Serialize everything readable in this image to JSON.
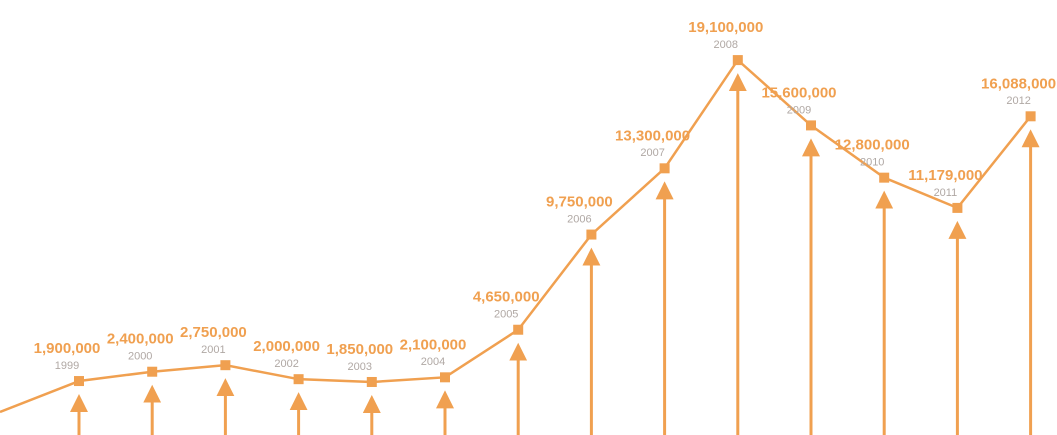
{
  "chart_data": {
    "type": "line",
    "categories": [
      "1999",
      "2000",
      "2001",
      "2002",
      "2003",
      "2004",
      "2005",
      "2006",
      "2007",
      "2008",
      "2009",
      "2010",
      "2011",
      "2012"
    ],
    "values": [
      1900000,
      2400000,
      2750000,
      2000000,
      1850000,
      2100000,
      4650000,
      9750000,
      13300000,
      19100000,
      15600000,
      12800000,
      11179000,
      16088000
    ],
    "value_labels": [
      "1,900,000",
      "2,400,000",
      "2,750,000",
      "2,000,000",
      "1,850,000",
      "2,100,000",
      "4,650,000",
      "9,750,000",
      "13,300,000",
      "19,100,000",
      "15,600,000",
      "12,800,000",
      "11,179,000",
      "16,088,000"
    ],
    "color": "#f0a050"
  }
}
